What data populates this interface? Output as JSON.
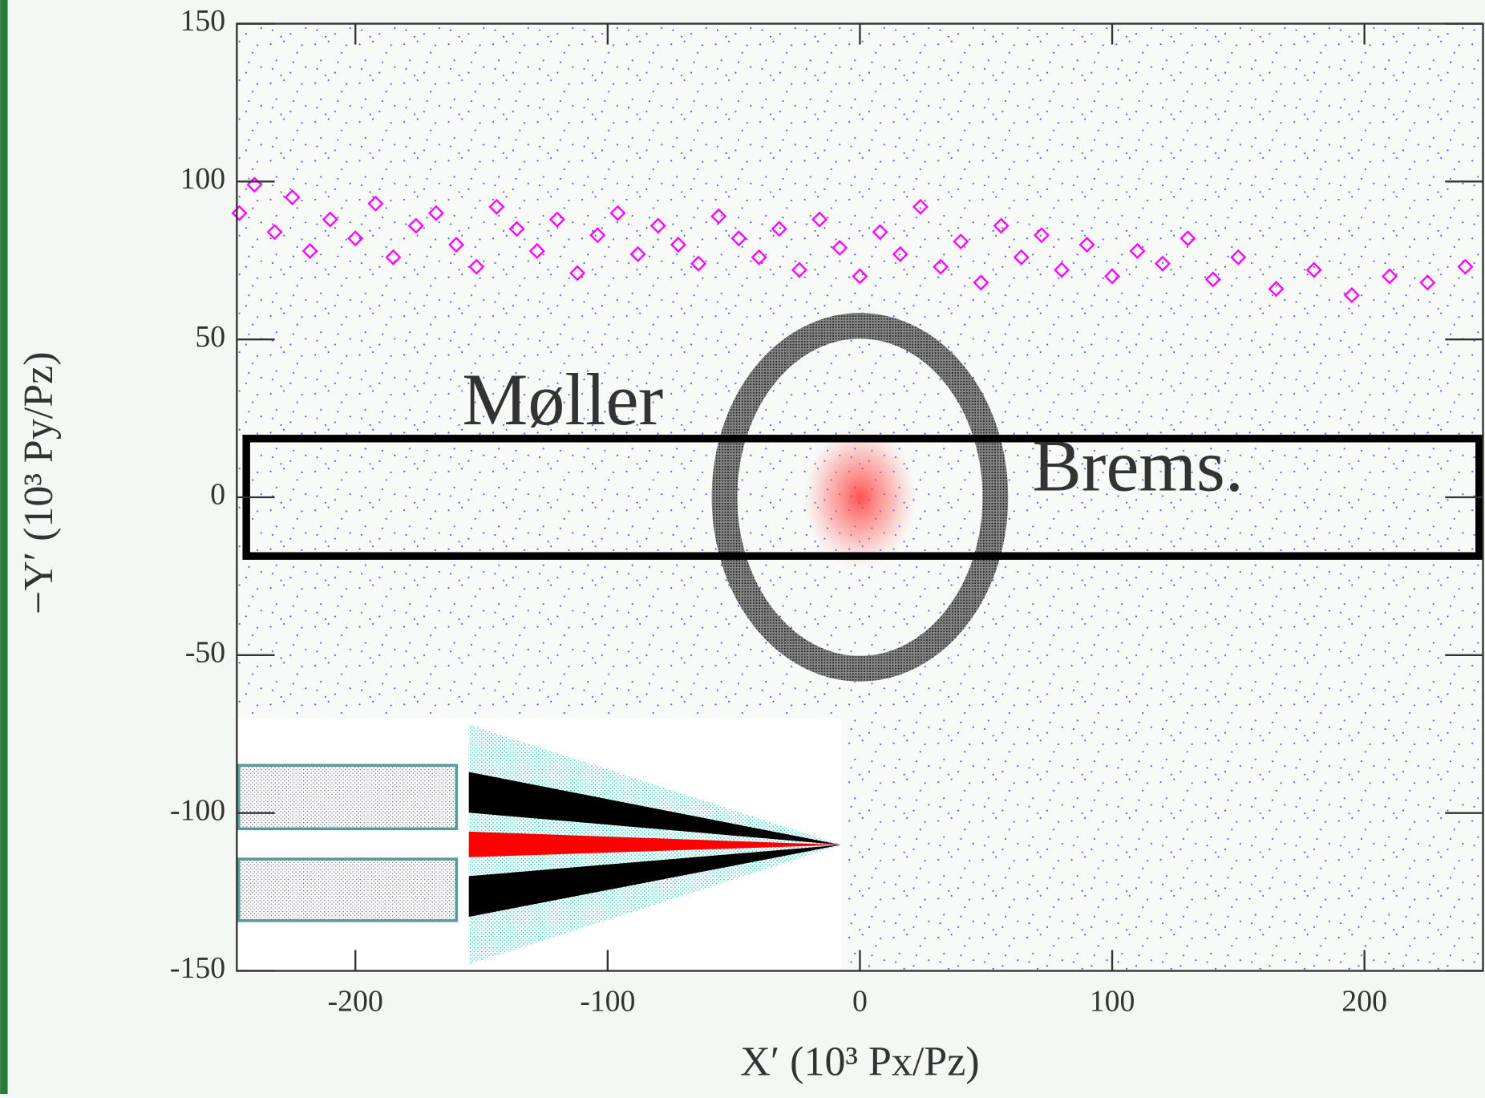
{
  "chart_data": {
    "type": "scatter",
    "x_label": "X′ (10³ Px/Pz)",
    "y_label": "−Y′ (10³ Py/Pz)",
    "xlim": [
      -247,
      247
    ],
    "ylim": [
      -150,
      150
    ],
    "xticks": [
      -200,
      -100,
      0,
      100,
      200
    ],
    "yticks": [
      -150,
      -100,
      -50,
      0,
      50,
      100,
      150
    ],
    "grid": false,
    "annotations": [
      {
        "text": "Møller",
        "color": "#333333"
      },
      {
        "text": "Brems.",
        "color": "#ff0000"
      }
    ],
    "series": [
      {
        "color": "#ff00ff",
        "x": [
          -246,
          -240,
          -232,
          -225,
          -218,
          -210,
          -200,
          -192,
          -185,
          -176,
          -168,
          -160,
          -152,
          -144,
          -136,
          -128,
          -120,
          -112,
          -104,
          -96,
          -88,
          -80,
          -72,
          -64,
          -56,
          -48,
          -40,
          -32,
          -24,
          -16,
          -8,
          0,
          8,
          16,
          24,
          32,
          40,
          48,
          56,
          64,
          72,
          80,
          90,
          100,
          110,
          120,
          130,
          140,
          150,
          165,
          180,
          195,
          210,
          225,
          240
        ],
        "y": [
          90,
          99,
          84,
          95,
          78,
          88,
          82,
          93,
          76,
          86,
          90,
          80,
          73,
          92,
          85,
          78,
          88,
          71,
          83,
          90,
          77,
          86,
          80,
          74,
          89,
          82,
          76,
          85,
          72,
          88,
          79,
          70,
          84,
          77,
          92,
          73,
          81,
          68,
          86,
          76,
          83,
          72,
          80,
          70,
          78,
          74,
          82,
          69,
          76,
          66,
          72,
          64,
          70,
          68,
          73
        ]
      }
    ]
  }
}
